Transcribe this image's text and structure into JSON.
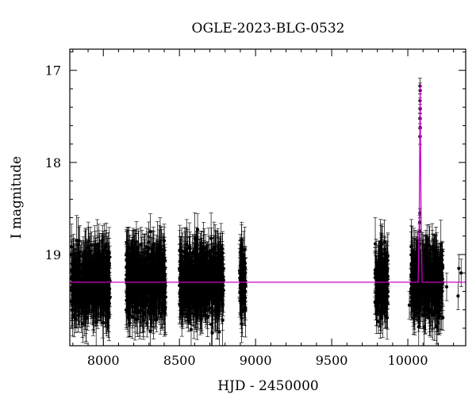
{
  "chart_data": {
    "type": "scatter",
    "title": "OGLE-2023-BLG-0532",
    "xlabel": "HJD - 2450000",
    "ylabel": "I magnitude",
    "xlim": [
      7780,
      10380
    ],
    "ylim": [
      19.99,
      16.77
    ],
    "y_inverted": true,
    "x_ticks": [
      8000,
      8500,
      9000,
      9500,
      10000
    ],
    "y_ticks": [
      17,
      18,
      19
    ],
    "grid": false,
    "colors": {
      "points": "#000000",
      "model": "#cc00cc"
    },
    "observing_seasons": [
      {
        "x_start": 7790,
        "x_end": 8045,
        "mag_mean": 19.3,
        "mag_scatter": 0.18
      },
      {
        "x_start": 8150,
        "x_end": 8410,
        "mag_mean": 19.3,
        "mag_scatter": 0.18
      },
      {
        "x_start": 8500,
        "x_end": 8790,
        "mag_mean": 19.3,
        "mag_scatter": 0.18
      },
      {
        "x_start": 8895,
        "x_end": 8935,
        "mag_mean": 19.3,
        "mag_scatter": 0.18
      },
      {
        "x_start": 9785,
        "x_end": 9870,
        "mag_mean": 19.3,
        "mag_scatter": 0.18
      },
      {
        "x_start": 10020,
        "x_end": 10230,
        "mag_mean": 19.3,
        "mag_scatter": 0.18
      }
    ],
    "event_points": [
      {
        "x": 10080,
        "y": 17.17
      },
      {
        "x": 10081,
        "y": 17.22
      },
      {
        "x": 10080,
        "y": 17.33
      },
      {
        "x": 10081,
        "y": 17.42
      },
      {
        "x": 10080,
        "y": 17.52
      },
      {
        "x": 10081,
        "y": 17.62
      },
      {
        "x": 10080,
        "y": 17.72
      },
      {
        "x": 10079,
        "y": 18.55
      },
      {
        "x": 10078,
        "y": 18.65
      },
      {
        "x": 10077,
        "y": 18.75
      },
      {
        "x": 10076,
        "y": 18.88
      },
      {
        "x": 10074,
        "y": 19.0
      }
    ],
    "outlier_points": [
      {
        "x": 10010,
        "y": 19.55
      },
      {
        "x": 10035,
        "y": 19.45
      },
      {
        "x": 10255,
        "y": 19.35
      },
      {
        "x": 10335,
        "y": 19.15
      },
      {
        "x": 10350,
        "y": 19.2
      },
      {
        "x": 10330,
        "y": 19.45
      },
      {
        "x": 8400,
        "y": 18.85
      },
      {
        "x": 7840,
        "y": 18.85
      }
    ],
    "model": {
      "baseline_mag": 19.3,
      "peak_x": 10081,
      "peak_mag": 17.15,
      "rise_start_x": 10068,
      "rise_end_x": 10094
    }
  }
}
